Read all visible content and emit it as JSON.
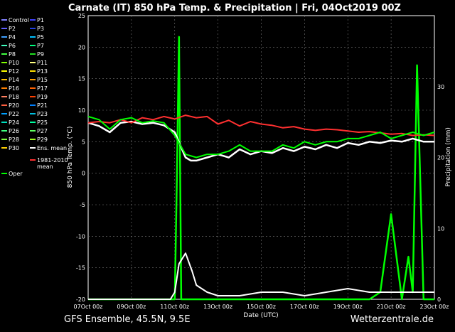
{
  "chart_data": {
    "type": "line",
    "title": "Carnate  (IT)  850 hPa Temp. & Precipitation | Fri, 04Oct2019 00Z",
    "xlabel": "Date (UTC)",
    "ylabel": "850 hPa Temp. (°C)",
    "y2label": "Precipitation (mm)",
    "x_ticks": [
      "07Oct 00z",
      "09Oct 00z",
      "11Oct 00z",
      "13Oct 00z",
      "15Oct 00z",
      "17Oct 00z",
      "19Oct 00z",
      "21Oct 00z",
      "23Oct 00z"
    ],
    "x_range_days": [
      0,
      16
    ],
    "ylim": [
      -20,
      25
    ],
    "y_ticks": [
      -20,
      -15,
      -10,
      -5,
      0,
      5,
      10,
      15,
      20,
      25
    ],
    "y2lim": [
      0,
      40
    ],
    "y2_ticks": [
      0,
      10,
      20,
      30
    ],
    "grid": true,
    "legend": {
      "placement": "left",
      "items": [
        {
          "name": "Control",
          "color": "#8080ff"
        },
        {
          "name": "P1",
          "color": "#4040ff"
        },
        {
          "name": "P2",
          "color": "#6060ff"
        },
        {
          "name": "P3",
          "color": "#2040e0"
        },
        {
          "name": "P4",
          "color": "#40a0ff"
        },
        {
          "name": "P5",
          "color": "#00c0ff"
        },
        {
          "name": "P6",
          "color": "#40ffc0"
        },
        {
          "name": "P7",
          "color": "#00ff80"
        },
        {
          "name": "P8",
          "color": "#40ff40"
        },
        {
          "name": "P9",
          "color": "#20e020"
        },
        {
          "name": "P10",
          "color": "#80ff00"
        },
        {
          "name": "P11",
          "color": "#ffff80"
        },
        {
          "name": "P12",
          "color": "#ffff00"
        },
        {
          "name": "P13",
          "color": "#ffe000"
        },
        {
          "name": "P14",
          "color": "#ffc000"
        },
        {
          "name": "P15",
          "color": "#ffa000"
        },
        {
          "name": "P16",
          "color": "#ff8000"
        },
        {
          "name": "P17",
          "color": "#ff6000"
        },
        {
          "name": "P18",
          "color": "#ff8060"
        },
        {
          "name": "P19",
          "color": "#ff4000"
        },
        {
          "name": "P20",
          "color": "#ff6040"
        },
        {
          "name": "P21",
          "color": "#0080ff"
        },
        {
          "name": "P22",
          "color": "#00a0ff"
        },
        {
          "name": "P23",
          "color": "#00c0e0"
        },
        {
          "name": "P24",
          "color": "#00e0c0"
        },
        {
          "name": "P25",
          "color": "#00ffa0"
        },
        {
          "name": "P26",
          "color": "#40ff80"
        },
        {
          "name": "P27",
          "color": "#60ff60"
        },
        {
          "name": "P28",
          "color": "#80ff40"
        },
        {
          "name": "P29",
          "color": "#a0ff20"
        },
        {
          "name": "P30",
          "color": "#ffd000"
        },
        {
          "name": "Ens. mean",
          "color": "#ffffff"
        },
        {
          "name": "1981-2010 mean",
          "color": "#ff3030"
        },
        {
          "name": "Oper",
          "color": "#00ff00"
        }
      ]
    },
    "series": [
      {
        "name": "Ens. mean",
        "color": "#ffffff",
        "x": [
          0,
          0.5,
          1,
          1.5,
          2,
          2.5,
          3,
          3.5,
          4,
          4.25,
          4.5,
          4.75,
          5,
          5.5,
          6,
          6.5,
          7,
          7.5,
          8,
          8.5,
          9,
          9.5,
          10,
          10.5,
          11,
          11.5,
          12,
          12.5,
          13,
          13.5,
          14,
          14.5,
          15,
          15.5,
          16
        ],
        "y": [
          8,
          7.5,
          6.5,
          8,
          8.2,
          7.8,
          8,
          7.6,
          6.5,
          4.5,
          2.5,
          2,
          2,
          2.5,
          3,
          2.5,
          3.8,
          3,
          3.5,
          3.2,
          4,
          3.5,
          4.2,
          3.8,
          4.5,
          4,
          4.8,
          4.5,
          5,
          4.8,
          5.2,
          5,
          5.5,
          5,
          5
        ]
      },
      {
        "name": "1981-2010 mean",
        "color": "#ff3030",
        "x": [
          0,
          0.5,
          1,
          1.5,
          2,
          2.5,
          3,
          3.5,
          4,
          4.5,
          5,
          5.5,
          6,
          6.5,
          7,
          7.5,
          8,
          8.5,
          9,
          9.5,
          10,
          10.5,
          11,
          11.5,
          12,
          12.5,
          13,
          13.5,
          14,
          14.5,
          15,
          15.5,
          16
        ],
        "y": [
          8,
          8.2,
          8,
          8.5,
          8,
          8.8,
          8.5,
          9,
          8.6,
          9.2,
          8.8,
          9,
          7.8,
          8.4,
          7.5,
          8.2,
          7.8,
          7.6,
          7.2,
          7.4,
          7,
          6.8,
          7,
          6.9,
          6.7,
          6.5,
          6.6,
          6.4,
          6.2,
          6.3,
          6,
          6.1,
          6
        ]
      },
      {
        "name": "Oper",
        "color": "#00ff00",
        "x": [
          0,
          0.5,
          1,
          1.5,
          2,
          2.5,
          3,
          3.5,
          4,
          4.5,
          5,
          5.5,
          6,
          6.5,
          7,
          7.5,
          8,
          8.5,
          9,
          9.5,
          10,
          10.5,
          11,
          11.5,
          12,
          12.5,
          13,
          13.5,
          14,
          14.5,
          15,
          15.5,
          16
        ],
        "y": [
          9,
          8.5,
          7,
          8.5,
          8.8,
          8,
          8.3,
          8,
          6,
          3,
          2.5,
          3,
          3,
          3.5,
          4.5,
          3.5,
          3.5,
          3.5,
          4.5,
          4,
          5,
          4.5,
          5,
          5,
          5.5,
          5.5,
          6,
          6.5,
          5.5,
          6,
          6.5,
          6,
          6.5
        ]
      }
    ],
    "precip_series": [
      {
        "name": "Oper",
        "color": "#00ff00",
        "x": [
          0,
          3.8,
          4.0,
          4.1,
          4.2,
          4.3,
          4.5,
          5,
          6,
          8,
          10,
          11,
          12,
          13,
          13.5,
          14,
          14.5,
          14.8,
          15,
          15.2,
          15.5,
          16
        ],
        "y": [
          0,
          0,
          0,
          17,
          37,
          0,
          0,
          0,
          0,
          0,
          0,
          0,
          0,
          0,
          1,
          12,
          0,
          6,
          1,
          33,
          0,
          0
        ]
      },
      {
        "name": "Ens. mean",
        "color": "#ffffff",
        "x": [
          0,
          3.8,
          4.0,
          4.2,
          4.5,
          4.8,
          5,
          5.5,
          6,
          7,
          8,
          9,
          10,
          11,
          12,
          13,
          14,
          15,
          16
        ],
        "y": [
          0,
          0,
          1,
          5,
          6.5,
          4,
          2,
          1,
          0.5,
          0.5,
          1,
          1,
          0.5,
          1,
          1.5,
          1,
          1,
          1,
          1
        ]
      }
    ]
  },
  "footer": {
    "left": "GFS Ensemble, 45.5N, 9.5E",
    "right": "Wetterzentrale.de"
  }
}
